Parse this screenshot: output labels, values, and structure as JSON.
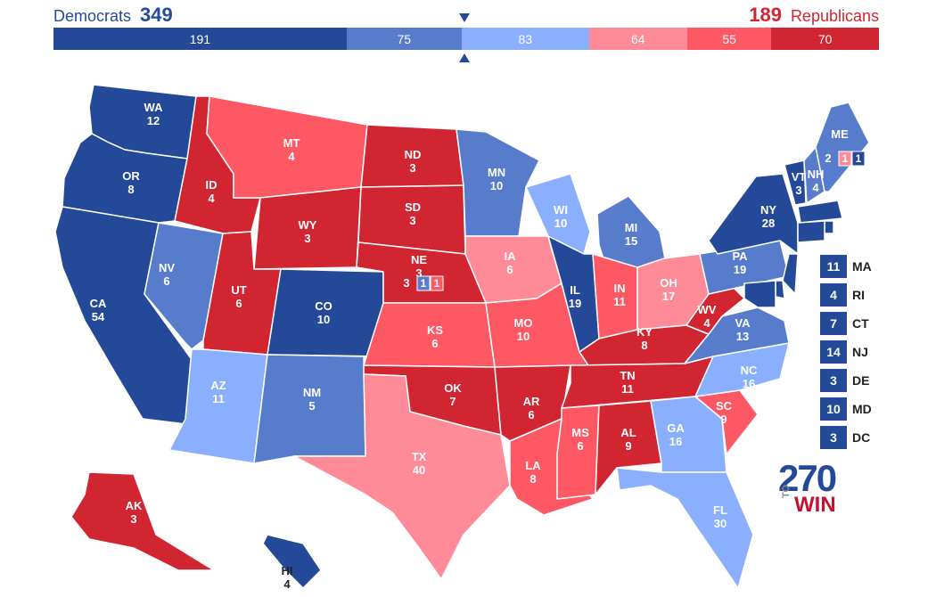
{
  "header": {
    "dem_label": "Democrats",
    "dem_total": "349",
    "rep_total": "189",
    "rep_label": "Republicans"
  },
  "bar": [
    {
      "value": 191,
      "label": "191",
      "color": "#244999"
    },
    {
      "value": 75,
      "label": "75",
      "color": "#577ccc"
    },
    {
      "value": 83,
      "label": "83",
      "color": "#8aafff"
    },
    {
      "value": 64,
      "label": "64",
      "color": "#ff8b98"
    },
    {
      "value": 55,
      "label": "55",
      "color": "#ff5865"
    },
    {
      "value": 70,
      "label": "70",
      "color": "#d22532"
    }
  ],
  "legend_colors": {
    "safe_dem": "#244999",
    "likely_dem": "#577ccc",
    "lean_dem": "#8aafff",
    "lean_rep": "#ff8b98",
    "likely_rep": "#ff5865",
    "safe_rep": "#d22532"
  },
  "states": [
    {
      "abbr": "WA",
      "ev": "12",
      "rating": "safe_dem"
    },
    {
      "abbr": "OR",
      "ev": "8",
      "rating": "safe_dem"
    },
    {
      "abbr": "CA",
      "ev": "54",
      "rating": "safe_dem"
    },
    {
      "abbr": "ID",
      "ev": "4",
      "rating": "safe_rep"
    },
    {
      "abbr": "NV",
      "ev": "6",
      "rating": "likely_dem"
    },
    {
      "abbr": "MT",
      "ev": "4",
      "rating": "likely_rep"
    },
    {
      "abbr": "WY",
      "ev": "3",
      "rating": "safe_rep"
    },
    {
      "abbr": "UT",
      "ev": "6",
      "rating": "safe_rep"
    },
    {
      "abbr": "AZ",
      "ev": "11",
      "rating": "lean_dem"
    },
    {
      "abbr": "CO",
      "ev": "10",
      "rating": "safe_dem"
    },
    {
      "abbr": "NM",
      "ev": "5",
      "rating": "likely_dem"
    },
    {
      "abbr": "ND",
      "ev": "3",
      "rating": "safe_rep"
    },
    {
      "abbr": "SD",
      "ev": "3",
      "rating": "safe_rep"
    },
    {
      "abbr": "NE",
      "ev": "3",
      "rating": "safe_rep"
    },
    {
      "abbr": "KS",
      "ev": "6",
      "rating": "likely_rep"
    },
    {
      "abbr": "OK",
      "ev": "7",
      "rating": "safe_rep"
    },
    {
      "abbr": "TX",
      "ev": "40",
      "rating": "lean_rep"
    },
    {
      "abbr": "MN",
      "ev": "10",
      "rating": "likely_dem"
    },
    {
      "abbr": "IA",
      "ev": "6",
      "rating": "lean_rep"
    },
    {
      "abbr": "MO",
      "ev": "10",
      "rating": "likely_rep"
    },
    {
      "abbr": "AR",
      "ev": "6",
      "rating": "safe_rep"
    },
    {
      "abbr": "LA",
      "ev": "8",
      "rating": "likely_rep"
    },
    {
      "abbr": "WI",
      "ev": "10",
      "rating": "lean_dem"
    },
    {
      "abbr": "IL",
      "ev": "19",
      "rating": "safe_dem"
    },
    {
      "abbr": "MI",
      "ev": "15",
      "rating": "likely_dem"
    },
    {
      "abbr": "IN",
      "ev": "11",
      "rating": "likely_rep"
    },
    {
      "abbr": "OH",
      "ev": "17",
      "rating": "lean_rep"
    },
    {
      "abbr": "KY",
      "ev": "8",
      "rating": "safe_rep"
    },
    {
      "abbr": "TN",
      "ev": "11",
      "rating": "safe_rep"
    },
    {
      "abbr": "MS",
      "ev": "6",
      "rating": "likely_rep"
    },
    {
      "abbr": "AL",
      "ev": "9",
      "rating": "safe_rep"
    },
    {
      "abbr": "GA",
      "ev": "16",
      "rating": "lean_dem"
    },
    {
      "abbr": "FL",
      "ev": "30",
      "rating": "lean_dem"
    },
    {
      "abbr": "SC",
      "ev": "9",
      "rating": "likely_rep"
    },
    {
      "abbr": "NC",
      "ev": "16",
      "rating": "lean_dem"
    },
    {
      "abbr": "VA",
      "ev": "13",
      "rating": "likely_dem"
    },
    {
      "abbr": "WV",
      "ev": "4",
      "rating": "safe_rep"
    },
    {
      "abbr": "PA",
      "ev": "19",
      "rating": "likely_dem"
    },
    {
      "abbr": "NY",
      "ev": "28",
      "rating": "safe_dem"
    },
    {
      "abbr": "VT",
      "ev": "3",
      "rating": "safe_dem"
    },
    {
      "abbr": "NH",
      "ev": "4",
      "rating": "likely_dem"
    },
    {
      "abbr": "ME",
      "ev": "",
      "rating": "likely_dem"
    },
    {
      "abbr": "AK",
      "ev": "3",
      "rating": "safe_rep"
    },
    {
      "abbr": "HI",
      "ev": "4",
      "rating": "safe_dem"
    },
    {
      "abbr": "MA",
      "ev": "11",
      "rating": "safe_dem"
    },
    {
      "abbr": "RI",
      "ev": "4",
      "rating": "safe_dem"
    },
    {
      "abbr": "CT",
      "ev": "7",
      "rating": "safe_dem"
    },
    {
      "abbr": "NJ",
      "ev": "14",
      "rating": "safe_dem"
    },
    {
      "abbr": "DE",
      "ev": "3",
      "rating": "safe_dem"
    },
    {
      "abbr": "MD",
      "ev": "10",
      "rating": "safe_dem"
    },
    {
      "abbr": "DC",
      "ev": "3",
      "rating": "safe_dem"
    }
  ],
  "split_districts": {
    "ME": {
      "statewide": "2",
      "cd1": "1",
      "cd2": "1",
      "cd1_rating": "lean_rep",
      "cd2_rating": "safe_dem"
    },
    "NE": {
      "statewide": "3",
      "cd1": "1",
      "cd2": "1",
      "cd1_rating": "likely_dem",
      "cd2_rating": "likely_rep"
    }
  },
  "small_states": [
    {
      "abbr": "MA",
      "ev": "11"
    },
    {
      "abbr": "RI",
      "ev": "4"
    },
    {
      "abbr": "CT",
      "ev": "7"
    },
    {
      "abbr": "NJ",
      "ev": "14"
    },
    {
      "abbr": "DE",
      "ev": "3"
    },
    {
      "abbr": "MD",
      "ev": "10"
    },
    {
      "abbr": "DC",
      "ev": "3"
    }
  ],
  "logo": {
    "number": "270",
    "to": "TO",
    "win": "WIN"
  }
}
